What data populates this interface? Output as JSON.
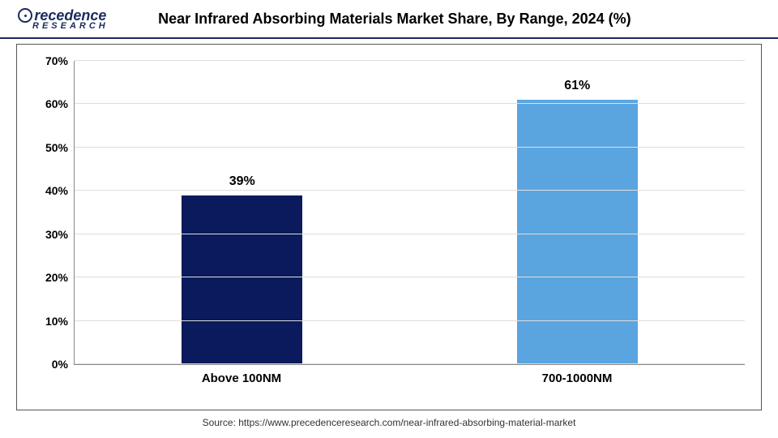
{
  "logo": {
    "brand_top": "recedence",
    "brand_sub": "RESEARCH"
  },
  "chart": {
    "type": "bar",
    "title": "Near Infrared Absorbing Materials Market Share, By Range, 2024 (%)",
    "categories": [
      "Above 100NM",
      "700-1000NM"
    ],
    "values": [
      39,
      61
    ],
    "value_labels": [
      "39%",
      "61%"
    ],
    "bar_colors": [
      "#0a1a5c",
      "#5aa5e0"
    ],
    "ylim": [
      0,
      70
    ],
    "ytick_step": 10,
    "ytick_labels": [
      "0%",
      "10%",
      "20%",
      "30%",
      "40%",
      "50%",
      "60%",
      "70%"
    ],
    "background_color": "#ffffff",
    "grid_color": "#dddddd",
    "bar_width_pct": 18,
    "title_fontsize": 18,
    "label_fontsize": 15,
    "value_fontsize": 16
  },
  "source": {
    "text": "Source: https://www.precedenceresearch.com/near-infrared-absorbing-material-market"
  }
}
